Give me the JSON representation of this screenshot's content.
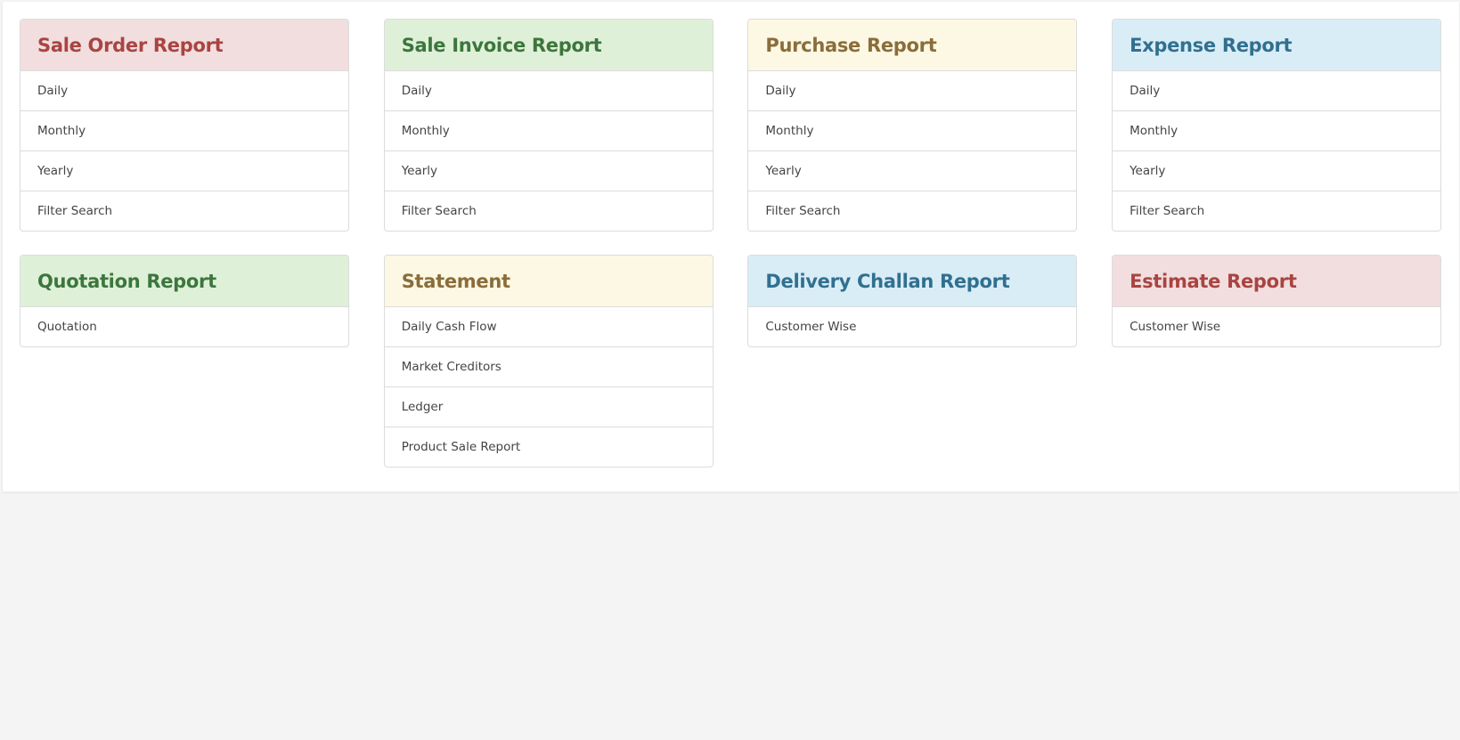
{
  "cards": [
    {
      "title": "Sale Order Report",
      "variant": "danger",
      "items": [
        "Daily",
        "Monthly",
        "Yearly",
        "Filter Search"
      ]
    },
    {
      "title": "Sale Invoice Report",
      "variant": "success",
      "items": [
        "Daily",
        "Monthly",
        "Yearly",
        "Filter Search"
      ]
    },
    {
      "title": "Purchase Report",
      "variant": "warning",
      "items": [
        "Daily",
        "Monthly",
        "Yearly",
        "Filter Search"
      ]
    },
    {
      "title": "Expense Report",
      "variant": "info",
      "items": [
        "Daily",
        "Monthly",
        "Yearly",
        "Filter Search"
      ]
    },
    {
      "title": "Quotation Report",
      "variant": "success",
      "items": [
        "Quotation"
      ]
    },
    {
      "title": "Statement",
      "variant": "warning",
      "items": [
        "Daily Cash Flow",
        "Market Creditors",
        "Ledger",
        "Product Sale Report"
      ]
    },
    {
      "title": "Delivery Challan Report",
      "variant": "info",
      "items": [
        "Customer Wise"
      ]
    },
    {
      "title": "Estimate Report",
      "variant": "danger",
      "items": [
        "Customer Wise"
      ]
    }
  ],
  "colors": {
    "danger": "#a94442",
    "success": "#3c763d",
    "warning": "#8a6d3b",
    "info": "#31708f"
  }
}
